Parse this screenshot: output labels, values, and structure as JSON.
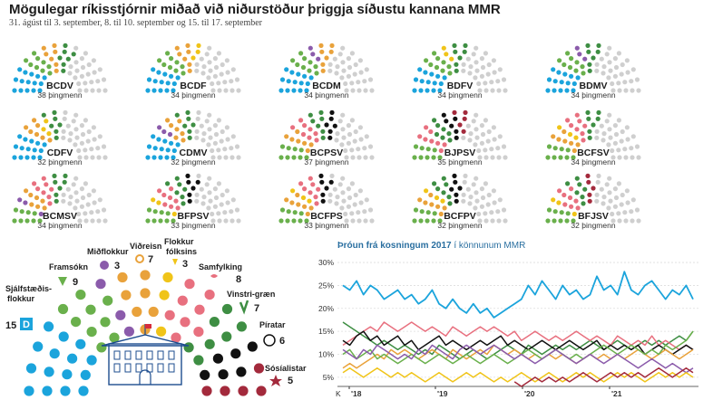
{
  "title": "Mögulegar ríkisstjórnir miðað við niðurstöður þriggja síðustu kannana MMR",
  "subtitle": "31. ágúst til 3. september, 8. til 10. september og 15. til 17. september",
  "colors": {
    "D": "#1ba4dc",
    "B": "#6ab04c",
    "S": "#e8707f",
    "V": "#3e8e43",
    "F": "#f0c419",
    "C": "#e9a23b",
    "M": "#8b5bab",
    "P": "#111111",
    "J": "#a32a3c",
    "empty": "#cfcfcf"
  },
  "chart_data": [
    {
      "type": "parliament",
      "title": "Mögulegar ríkisstjórnir",
      "total_seats": 63,
      "coalitions": [
        {
          "name": "BCDV",
          "seats_text": "38 þingmenn",
          "parties": [
            "D",
            "B",
            "C",
            "V"
          ],
          "seats": 38
        },
        {
          "name": "BCDF",
          "seats_text": "34 þingmenn",
          "parties": [
            "D",
            "B",
            "C",
            "F"
          ],
          "seats": 34
        },
        {
          "name": "BCDM",
          "seats_text": "34 þingmenn",
          "parties": [
            "D",
            "B",
            "C",
            "M"
          ],
          "seats": 34
        },
        {
          "name": "BDFV",
          "seats_text": "34 þingmenn",
          "parties": [
            "D",
            "B",
            "F",
            "V"
          ],
          "seats": 34
        },
        {
          "name": "BDMV",
          "seats_text": "34 þingmenn",
          "parties": [
            "D",
            "B",
            "M",
            "V"
          ],
          "seats": 34
        },
        {
          "name": "CDFV",
          "seats_text": "32 þingmenn",
          "parties": [
            "D",
            "C",
            "F",
            "V"
          ],
          "seats": 32
        },
        {
          "name": "CDMV",
          "seats_text": "32 þingmenn",
          "parties": [
            "D",
            "C",
            "M",
            "V"
          ],
          "seats": 32
        },
        {
          "name": "BCPSV",
          "seats_text": "37 þingmenn",
          "parties": [
            "B",
            "C",
            "S",
            "P",
            "V"
          ],
          "seats": 37
        },
        {
          "name": "BJPSV",
          "seats_text": "35 þingmenn",
          "parties": [
            "B",
            "S",
            "P",
            "J",
            "V"
          ],
          "seats": 35
        },
        {
          "name": "BCFSV",
          "seats_text": "34 þingmenn",
          "parties": [
            "B",
            "C",
            "F",
            "S",
            "V"
          ],
          "seats": 34
        },
        {
          "name": "BCMSV",
          "seats_text": "34 þingmenn",
          "parties": [
            "B",
            "C",
            "M",
            "S",
            "V"
          ],
          "seats": 34
        },
        {
          "name": "BFPSV",
          "seats_text": "33 þingmenn",
          "parties": [
            "B",
            "F",
            "S",
            "P",
            "V"
          ],
          "seats": 33
        },
        {
          "name": "BCFPS",
          "seats_text": "33 þingmenn",
          "parties": [
            "B",
            "C",
            "F",
            "S",
            "P"
          ],
          "seats": 33
        },
        {
          "name": "BCFPV",
          "seats_text": "32 þingmenn",
          "parties": [
            "B",
            "C",
            "F",
            "P",
            "V"
          ],
          "seats": 32
        },
        {
          "name": "BFJSV",
          "seats_text": "32 þingmenn",
          "parties": [
            "B",
            "F",
            "S",
            "J",
            "V"
          ],
          "seats": 32
        }
      ]
    },
    {
      "type": "parliament",
      "title": "",
      "parties": [
        {
          "key": "D",
          "name": "Sjálfstæðis-flokkur",
          "seats": 15,
          "badge": "D"
        },
        {
          "key": "B",
          "name": "Framsókn",
          "seats": 9
        },
        {
          "key": "M",
          "name": "Miðflokkur",
          "seats": 3
        },
        {
          "key": "C",
          "name": "Viðreisn",
          "seats": 7
        },
        {
          "key": "F",
          "name": "Flokkur fólksins",
          "seats": 3
        },
        {
          "key": "S",
          "name": "Samfylking",
          "seats": 8
        },
        {
          "key": "V",
          "name": "Vinstri-græn",
          "seats": 7
        },
        {
          "key": "P",
          "name": "Píratar",
          "seats": 6
        },
        {
          "key": "J",
          "name": "Sósíalistar",
          "seats": 5
        }
      ]
    },
    {
      "type": "line",
      "title": "Þróun frá kosningum 2017",
      "subtitle": "í könnunum MMR",
      "x_ticks": [
        "'18",
        "'19",
        "'20",
        "'21"
      ],
      "x_start_label": "K",
      "y_ticks": [
        "30%",
        "25%",
        "20%",
        "15%",
        "10%",
        "5%"
      ],
      "ylim": [
        3,
        31
      ],
      "series": [
        {
          "key": "D",
          "values": [
            25,
            24,
            26,
            23,
            25,
            24,
            22,
            23,
            24,
            22,
            23,
            21,
            22,
            24,
            21,
            20,
            22,
            20,
            19,
            21,
            19,
            20,
            18,
            19,
            20,
            21,
            22,
            25,
            23,
            26,
            24,
            22,
            25,
            23,
            24,
            22,
            23,
            27,
            24,
            25,
            23,
            28,
            24,
            23,
            25,
            26,
            24,
            22,
            24,
            23,
            25,
            22
          ]
        },
        {
          "key": "V",
          "values": [
            17,
            16,
            15,
            14,
            13,
            12,
            13,
            12,
            11,
            12,
            11,
            10,
            11,
            10,
            12,
            11,
            10,
            9,
            10,
            11,
            10,
            9,
            10,
            11,
            12,
            11,
            10,
            12,
            11,
            10,
            11,
            12,
            11,
            12,
            11,
            12,
            13,
            12,
            11,
            12,
            13,
            12,
            11,
            12,
            13,
            12,
            13,
            12,
            13,
            14,
            13,
            15
          ]
        },
        {
          "key": "S",
          "values": [
            12,
            13,
            14,
            15,
            16,
            15,
            17,
            16,
            15,
            16,
            17,
            16,
            15,
            16,
            15,
            14,
            16,
            15,
            14,
            15,
            16,
            15,
            16,
            15,
            14,
            15,
            13,
            14,
            15,
            14,
            13,
            14,
            13,
            14,
            15,
            14,
            13,
            14,
            13,
            12,
            14,
            13,
            12,
            13,
            12,
            14,
            12,
            13,
            12,
            11,
            12,
            11
          ]
        },
        {
          "key": "P",
          "values": [
            13,
            12,
            14,
            15,
            13,
            14,
            12,
            13,
            14,
            12,
            13,
            11,
            12,
            13,
            14,
            12,
            13,
            12,
            11,
            12,
            13,
            12,
            13,
            14,
            12,
            13,
            12,
            11,
            12,
            13,
            12,
            11,
            12,
            13,
            12,
            11,
            12,
            13,
            11,
            12,
            11,
            12,
            11,
            12,
            10,
            11,
            12,
            11,
            10,
            11,
            12,
            11
          ]
        },
        {
          "key": "C",
          "values": [
            7,
            8,
            7,
            8,
            9,
            10,
            9,
            11,
            10,
            11,
            10,
            9,
            10,
            11,
            10,
            9,
            11,
            10,
            9,
            10,
            11,
            10,
            12,
            11,
            10,
            11,
            10,
            9,
            10,
            9,
            10,
            9,
            10,
            9,
            8,
            9,
            10,
            9,
            10,
            9,
            10,
            9,
            10,
            11,
            10,
            9,
            10,
            11,
            10,
            9,
            10,
            11
          ]
        },
        {
          "key": "B",
          "values": [
            10,
            11,
            9,
            10,
            11,
            9,
            10,
            9,
            8,
            9,
            10,
            9,
            8,
            9,
            10,
            9,
            8,
            9,
            10,
            9,
            8,
            9,
            10,
            9,
            8,
            9,
            10,
            11,
            10,
            9,
            10,
            11,
            10,
            9,
            10,
            9,
            10,
            11,
            12,
            11,
            10,
            11,
            12,
            11,
            10,
            11,
            10,
            12,
            11,
            12,
            13,
            15
          ]
        },
        {
          "key": "M",
          "values": [
            11,
            10,
            9,
            11,
            10,
            12,
            11,
            10,
            9,
            10,
            9,
            11,
            10,
            12,
            11,
            10,
            9,
            11,
            12,
            11,
            10,
            11,
            12,
            11,
            10,
            9,
            10,
            9,
            8,
            9,
            10,
            11,
            10,
            9,
            8,
            9,
            10,
            9,
            8,
            9,
            10,
            9,
            8,
            7,
            8,
            9,
            8,
            7,
            8,
            7,
            6,
            7
          ]
        },
        {
          "key": "F",
          "values": [
            6,
            7,
            6,
            5,
            6,
            7,
            6,
            5,
            6,
            5,
            6,
            5,
            4,
            5,
            6,
            5,
            4,
            5,
            6,
            5,
            6,
            5,
            4,
            5,
            4,
            5,
            6,
            5,
            4,
            5,
            6,
            5,
            4,
            5,
            6,
            5,
            6,
            5,
            4,
            5,
            6,
            5,
            6,
            5,
            4,
            5,
            6,
            5,
            6,
            5,
            6,
            5
          ]
        },
        {
          "key": "J",
          "values": [
            null,
            null,
            null,
            null,
            null,
            null,
            null,
            null,
            null,
            null,
            null,
            null,
            null,
            null,
            null,
            null,
            null,
            null,
            null,
            null,
            null,
            null,
            null,
            null,
            null,
            4,
            3,
            4,
            5,
            4,
            5,
            4,
            5,
            4,
            5,
            6,
            5,
            4,
            5,
            6,
            5,
            6,
            5,
            6,
            5,
            6,
            7,
            6,
            5,
            6,
            7,
            6
          ]
        }
      ]
    }
  ]
}
